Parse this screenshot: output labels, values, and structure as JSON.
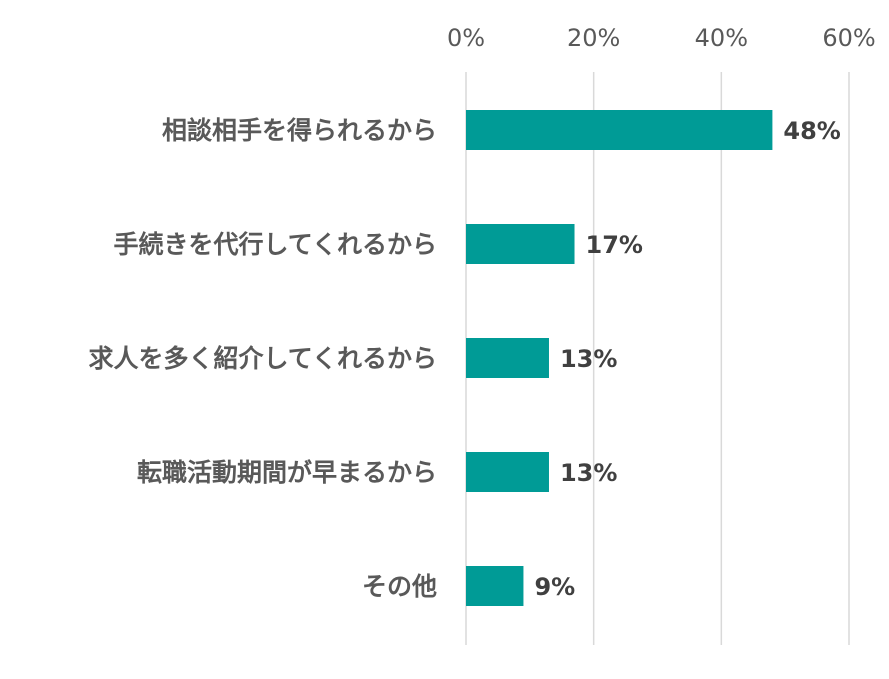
{
  "colors": {
    "bar": "#009b96",
    "gridline": "#d9d9d9"
  },
  "chart_data": {
    "type": "bar",
    "orientation": "horizontal",
    "categories": [
      "相談相手を得られるから",
      "手続きを代行してくれるから",
      "求人を多く紹介してくれるから",
      "転職活動期間が早まるから",
      "その他"
    ],
    "values": [
      48,
      17,
      13,
      13,
      9
    ],
    "data_labels": [
      "48%",
      "17%",
      "13%",
      "13%",
      "9%"
    ],
    "xlim": [
      0,
      60
    ],
    "x_ticks": [
      0,
      20,
      40,
      60
    ],
    "x_tick_labels": [
      "0%",
      "20%",
      "40%",
      "60%"
    ],
    "x_axis_position": "top",
    "grid": true,
    "legend": "none"
  }
}
